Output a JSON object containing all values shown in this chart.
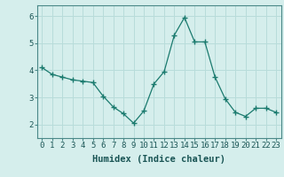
{
  "x": [
    0,
    1,
    2,
    3,
    4,
    5,
    6,
    7,
    8,
    9,
    10,
    11,
    12,
    13,
    14,
    15,
    16,
    17,
    18,
    19,
    20,
    21,
    22,
    23
  ],
  "y": [
    4.1,
    3.85,
    3.75,
    3.65,
    3.6,
    3.55,
    3.05,
    2.65,
    2.4,
    2.05,
    2.5,
    3.5,
    3.95,
    5.3,
    5.95,
    5.05,
    5.05,
    3.75,
    2.95,
    2.45,
    2.3,
    2.6,
    2.6,
    2.45
  ],
  "line_color": "#1a7a6e",
  "marker": "+",
  "marker_size": 4,
  "bg_color": "#d5eeec",
  "grid_color": "#b8dcda",
  "axes_edge_color": "#4a8888",
  "tick_color": "#1a5555",
  "xlabel": "Humidex (Indice chaleur)",
  "xlabel_fontsize": 7.5,
  "ylim": [
    1.5,
    6.4
  ],
  "xlim": [
    -0.5,
    23.5
  ],
  "yticks": [
    2,
    3,
    4,
    5,
    6
  ],
  "xtick_labels": [
    "0",
    "1",
    "2",
    "3",
    "4",
    "5",
    "6",
    "7",
    "8",
    "9",
    "10",
    "11",
    "12",
    "13",
    "14",
    "15",
    "16",
    "17",
    "18",
    "19",
    "20",
    "21",
    "22",
    "23"
  ],
  "tick_fontsize": 6.5
}
